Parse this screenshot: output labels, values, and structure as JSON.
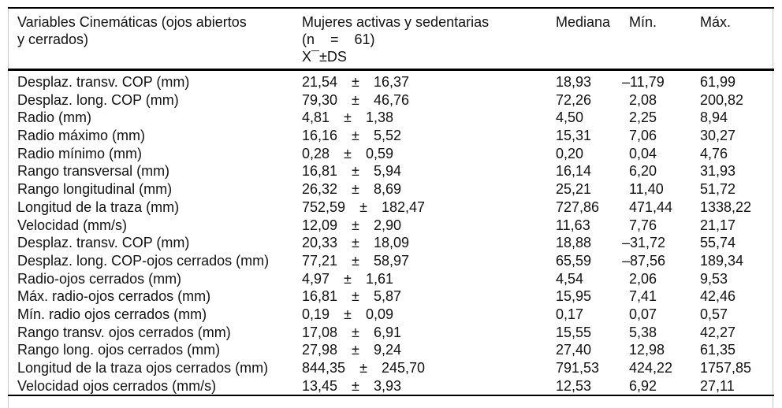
{
  "table": {
    "pm_symbol": "±",
    "header": {
      "variables": "Variables Cinemáticas (ojos abiertos y cerrados)",
      "group_line1": "Mujeres activas y sedentarias",
      "group_line2": "(n    =    61)",
      "group_line3": "X¯±DS",
      "mediana": "Mediana",
      "min": "Mín.",
      "max": "Máx."
    },
    "rows": [
      {
        "label": "Desplaz. transv. COP (mm)",
        "mean": "21,54",
        "sd": "16,37",
        "median": "18,93",
        "min": "–11,79",
        "max": "61,99"
      },
      {
        "label": "Desplaz. long. COP (mm)",
        "mean": "79,30",
        "sd": "46,76",
        "median": "72,26",
        "min": "2,08",
        "max": "200,82"
      },
      {
        "label": "Radio (mm)",
        "mean": "4,81",
        "sd": "1,38",
        "median": "4,50",
        "min": "2,25",
        "max": "8,94"
      },
      {
        "label": "Radio máximo (mm)",
        "mean": "16,16",
        "sd": "5,52",
        "median": "15,31",
        "min": "7,06",
        "max": "30,27"
      },
      {
        "label": "Radio mínimo (mm)",
        "mean": "0,28",
        "sd": "0,59",
        "median": "0,20",
        "min": "0,04",
        "max": "4,76"
      },
      {
        "label": "Rango transversal (mm)",
        "mean": "16,81",
        "sd": "5,94",
        "median": "16,14",
        "min": "6,20",
        "max": "31,93"
      },
      {
        "label": "Rango longitudinal (mm)",
        "mean": "26,32",
        "sd": "8,69",
        "median": "25,21",
        "min": "11,40",
        "max": "51,72"
      },
      {
        "label": "Longitud de la traza (mm)",
        "mean": "752,59",
        "sd": "182,47",
        "median": "727,86",
        "min": "471,44",
        "max": "1338,22"
      },
      {
        "label": "Velocidad (mm/s)",
        "mean": "12,09",
        "sd": "2,90",
        "median": "11,63",
        "min": "7,76",
        "max": "21,17"
      },
      {
        "label": "Desplaz. transv. COP (mm)",
        "mean": "20,33",
        "sd": "18,09",
        "median": "18,88",
        "min": "–31,72",
        "max": "55,74"
      },
      {
        "label": "Desplaz. long. COP-ojos cerrados (mm)",
        "mean": "77,21",
        "sd": "58,97",
        "median": "65,59",
        "min": "–87,56",
        "max": "189,34"
      },
      {
        "label": "Radio-ojos cerrados (mm)",
        "mean": "4,97",
        "sd": "1,61",
        "median": "4,54",
        "min": "2,06",
        "max": "9,53"
      },
      {
        "label": "Máx. radio-ojos cerrados (mm)",
        "mean": "16,81",
        "sd": "5,87",
        "median": "15,95",
        "min": "7,41",
        "max": "42,46"
      },
      {
        "label": "Mín. radio ojos cerrados (mm)",
        "mean": "0,19",
        "sd": "0,09",
        "median": "0,17",
        "min": "0,07",
        "max": "0,57"
      },
      {
        "label": "Rango transv. ojos cerrados (mm)",
        "mean": "17,08",
        "sd": "6,91",
        "median": "15,55",
        "min": "5,38",
        "max": "42,27"
      },
      {
        "label": "Rango long. ojos cerrados (mm)",
        "mean": "27,98",
        "sd": "9,24",
        "median": "27,40",
        "min": "12,98",
        "max": "61,35"
      },
      {
        "label": "Longitud de la traza ojos cerrados (mm)",
        "mean": "844,35",
        "sd": "245,70",
        "median": "791,53",
        "min": "424,22",
        "max": "1757,85"
      },
      {
        "label": "Velocidad ojos cerrados (mm/s)",
        "mean": "13,45",
        "sd": "3,93",
        "median": "12,53",
        "min": "6,92",
        "max": "27,11"
      }
    ]
  }
}
